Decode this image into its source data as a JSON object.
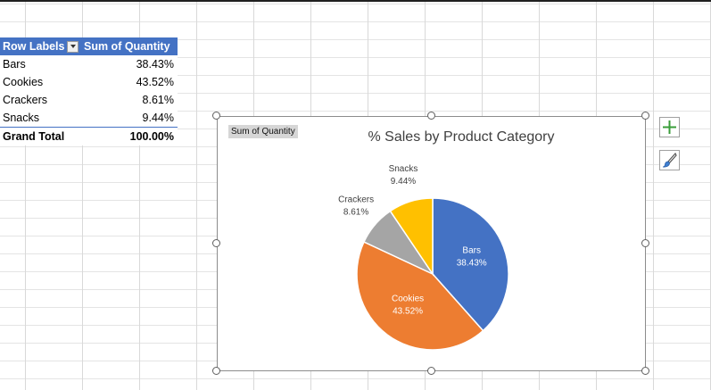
{
  "pivot": {
    "headers": {
      "row_labels": "Row Labels",
      "sum_of_quantity": "Sum of Quantity"
    },
    "rows": [
      {
        "label": "Bars",
        "value": "38.43%"
      },
      {
        "label": "Cookies",
        "value": "43.52%"
      },
      {
        "label": "Crackers",
        "value": "8.61%"
      },
      {
        "label": "Snacks",
        "value": "9.44%"
      }
    ],
    "total": {
      "label": "Grand Total",
      "value": "100.00%"
    }
  },
  "chart": {
    "field_button": "Sum of Quantity"
  },
  "chart_data": {
    "type": "pie",
    "title": "% Sales by Product Category",
    "categories": [
      "Bars",
      "Cookies",
      "Crackers",
      "Snacks"
    ],
    "values": [
      38.43,
      43.52,
      8.61,
      9.44
    ],
    "data_labels": [
      "38.43%",
      "43.52%",
      "8.61%",
      "9.44%"
    ],
    "colors": [
      "#4472c4",
      "#ed7d31",
      "#a5a5a5",
      "#ffc000"
    ],
    "legend": "none"
  },
  "side_buttons": {
    "add_icon": "plus-icon",
    "style_icon": "paintbrush-icon"
  }
}
